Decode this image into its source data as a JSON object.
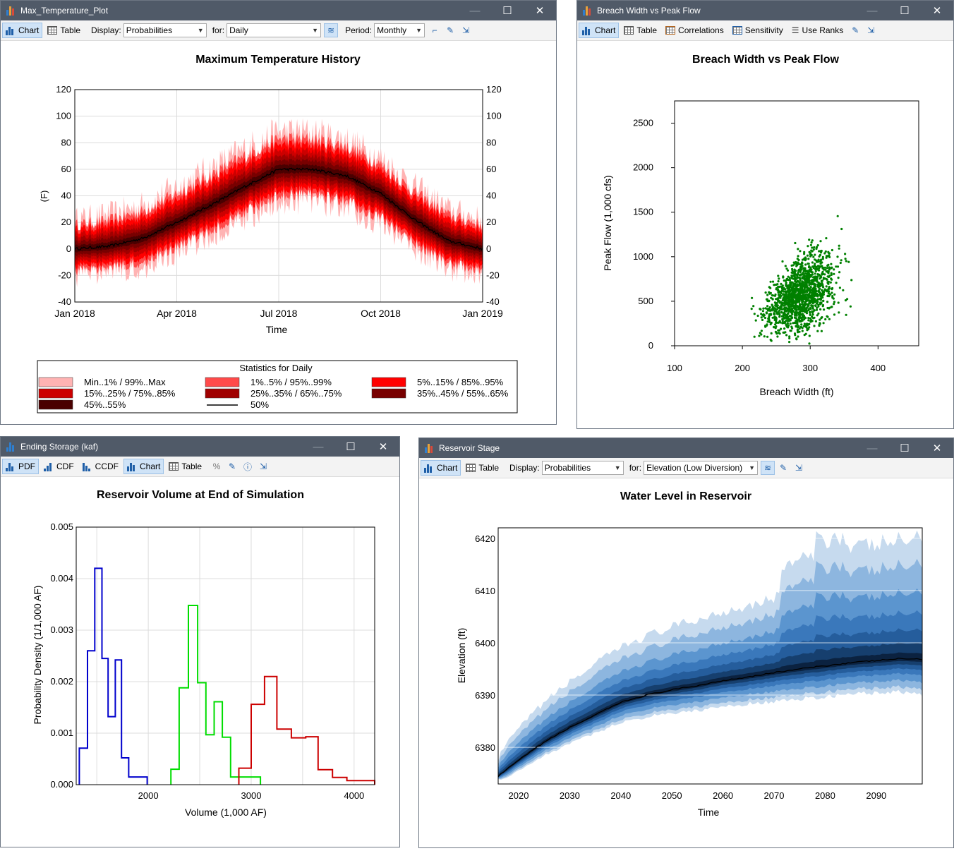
{
  "windows": {
    "temp": {
      "title": "Max_Temperature_Plot",
      "toolbar": {
        "chart": "Chart",
        "table": "Table",
        "display_label": "Display:",
        "display_value": "Probabilities",
        "for_label": "for:",
        "for_value": "Daily",
        "period_label": "Period:",
        "period_value": "Monthly"
      }
    },
    "breach": {
      "title": "Breach Width vs Peak Flow",
      "toolbar": {
        "chart": "Chart",
        "table": "Table",
        "correlations": "Correlations",
        "sensitivity": "Sensitivity",
        "use_ranks": "Use Ranks"
      }
    },
    "storage": {
      "title": "Ending Storage (kaf)",
      "toolbar": {
        "pdf": "PDF",
        "cdf": "CDF",
        "ccdf": "CCDF",
        "chart": "Chart",
        "table": "Table",
        "percent": "%"
      }
    },
    "stage": {
      "title": "Reservoir Stage",
      "toolbar": {
        "chart": "Chart",
        "table": "Table",
        "display_label": "Display:",
        "display_value": "Probabilities",
        "for_label": "for:",
        "for_value": "Elevation (Low Diversion)"
      }
    }
  },
  "colors": {
    "titlebar": "#505a68",
    "scatter": "#008000",
    "pdf_blue": "#0000cc",
    "pdf_green": "#00dd00",
    "pdf_red": "#cc0000"
  },
  "chart_data": [
    {
      "id": "temp",
      "type": "area",
      "title": "Maximum Temperature History",
      "xlabel": "Time",
      "ylabel": "(F)",
      "ylim": [
        -40,
        120
      ],
      "yticks": [
        -40,
        -20,
        0,
        20,
        40,
        60,
        80,
        100,
        120
      ],
      "xticks": [
        "Jan 2018",
        "Apr 2018",
        "Jul 2018",
        "Oct 2018",
        "Jan 2019"
      ],
      "median_by_month": [
        0,
        2,
        8,
        20,
        33,
        47,
        60,
        60,
        55,
        42,
        22,
        6,
        0
      ],
      "legend_title": "Statistics for Daily",
      "legend": [
        {
          "label": "Min..1% / 99%..Max",
          "color": "#ffb3b3"
        },
        {
          "label": "1%..5% / 95%..99%",
          "color": "#ff4a4a"
        },
        {
          "label": "5%..15% / 85%..95%",
          "color": "#ff0000"
        },
        {
          "label": "15%..25% / 75%..85%",
          "color": "#cc0000"
        },
        {
          "label": "25%..35% / 65%..75%",
          "color": "#a00000"
        },
        {
          "label": "35%..45% / 55%..65%",
          "color": "#780000"
        },
        {
          "label": "45%..55%",
          "color": "#4a0000"
        },
        {
          "label": "50%",
          "color": "#000000"
        }
      ]
    },
    {
      "id": "breach",
      "type": "scatter",
      "title": "Breach Width vs Peak Flow",
      "xlabel": "Breach Width (ft)",
      "ylabel": "Peak Flow (1,000 cfs)",
      "xlim": [
        100,
        460
      ],
      "ylim": [
        0,
        2750
      ],
      "xticks": [
        100,
        200,
        300,
        400
      ],
      "yticks": [
        0,
        500,
        1000,
        1500,
        2000,
        2500
      ],
      "n_points": 1500
    },
    {
      "id": "storage",
      "type": "line",
      "title": "Reservoir Volume at End of Simulation",
      "xlabel": "Volume (1,000 AF)",
      "ylabel": "Probability Density (1/1,000 AF)",
      "xlim": [
        1300,
        4200
      ],
      "ylim": [
        0,
        0.005
      ],
      "xticks": [
        2000,
        3000,
        4000
      ],
      "yticks": [
        "0.000",
        "0.001",
        "0.002",
        "0.003",
        "0.004",
        "0.005"
      ],
      "series": [
        {
          "name": "blue",
          "color": "#0000cc",
          "steps": [
            [
              1330,
              0
            ],
            [
              1330,
              0.00071
            ],
            [
              1410,
              0.00071
            ],
            [
              1410,
              0.0026
            ],
            [
              1480,
              0.0026
            ],
            [
              1480,
              0.0042
            ],
            [
              1550,
              0.0042
            ],
            [
              1550,
              0.00245
            ],
            [
              1610,
              0.00245
            ],
            [
              1610,
              0.00132
            ],
            [
              1680,
              0.00132
            ],
            [
              1680,
              0.00242
            ],
            [
              1740,
              0.00242
            ],
            [
              1740,
              0.00052
            ],
            [
              1810,
              0.00052
            ],
            [
              1810,
              0.00015
            ],
            [
              1990,
              0.00015
            ],
            [
              1990,
              0
            ]
          ]
        },
        {
          "name": "green",
          "color": "#00dd00",
          "steps": [
            [
              2220,
              0
            ],
            [
              2220,
              0.0003
            ],
            [
              2300,
              0.0003
            ],
            [
              2300,
              0.00188
            ],
            [
              2390,
              0.00188
            ],
            [
              2390,
              0.00348
            ],
            [
              2480,
              0.00348
            ],
            [
              2480,
              0.00198
            ],
            [
              2560,
              0.00198
            ],
            [
              2560,
              0.00097
            ],
            [
              2640,
              0.00097
            ],
            [
              2640,
              0.00161
            ],
            [
              2720,
              0.00161
            ],
            [
              2720,
              0.00092
            ],
            [
              2800,
              0.00092
            ],
            [
              2800,
              0.00015
            ],
            [
              3090,
              0.00015
            ],
            [
              3090,
              0
            ]
          ]
        },
        {
          "name": "red",
          "color": "#cc0000",
          "steps": [
            [
              2880,
              0
            ],
            [
              2880,
              0.00032
            ],
            [
              3000,
              0.00032
            ],
            [
              3000,
              0.00156
            ],
            [
              3130,
              0.00156
            ],
            [
              3130,
              0.0021
            ],
            [
              3250,
              0.0021
            ],
            [
              3250,
              0.00108
            ],
            [
              3390,
              0.00108
            ],
            [
              3390,
              0.00091
            ],
            [
              3530,
              0.00091
            ],
            [
              3530,
              0.00093
            ],
            [
              3650,
              0.00093
            ],
            [
              3650,
              0.00029
            ],
            [
              3790,
              0.00029
            ],
            [
              3790,
              0.00014
            ],
            [
              3930,
              0.00014
            ],
            [
              3930,
              8e-05
            ],
            [
              4200,
              8e-05
            ],
            [
              4200,
              0
            ]
          ]
        }
      ]
    },
    {
      "id": "stage",
      "type": "area",
      "title": "Water Level in Reservoir",
      "xlabel": "Time",
      "ylabel": "Elevation (ft)",
      "xlim": [
        2016,
        2099
      ],
      "ylim": [
        6373,
        6422
      ],
      "xticks": [
        2020,
        2030,
        2040,
        2050,
        2060,
        2070,
        2080,
        2090
      ],
      "yticks": [
        6380,
        6390,
        6400,
        6410,
        6420
      ],
      "median": [
        [
          2016,
          6374.5
        ],
        [
          2020,
          6377.5
        ],
        [
          2025,
          6381
        ],
        [
          2030,
          6383.8
        ],
        [
          2035,
          6386.2
        ],
        [
          2040,
          6388.6
        ],
        [
          2045,
          6390
        ],
        [
          2050,
          6391
        ],
        [
          2055,
          6391.8
        ],
        [
          2060,
          6392.8
        ],
        [
          2065,
          6393.5
        ],
        [
          2070,
          6394.3
        ],
        [
          2075,
          6395
        ],
        [
          2080,
          6395.6
        ],
        [
          2085,
          6396.2
        ],
        [
          2090,
          6396.6
        ],
        [
          2095,
          6397
        ],
        [
          2099,
          6396.8
        ]
      ],
      "band_colors": [
        "#c6daee",
        "#8db6df",
        "#5b95cf",
        "#3a78bb",
        "#255d9c",
        "#163f6e",
        "#0b2240"
      ]
    }
  ]
}
